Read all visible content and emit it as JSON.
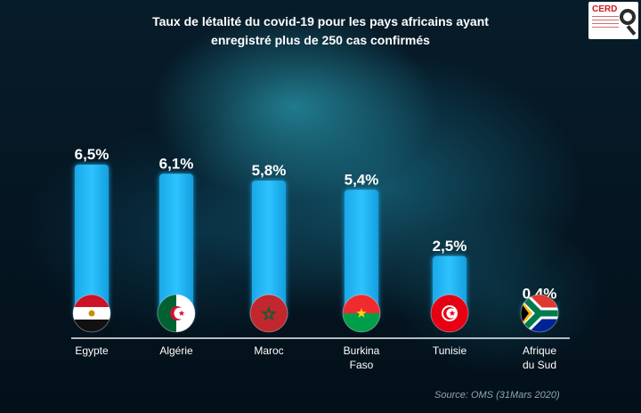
{
  "title_line1": "Taux de létalité du covid-19 pour les pays africains ayant",
  "title_line2": "enregistré plus de 250 cas confirmés",
  "logo_text": "CERD",
  "source": "Source: OMS (31Mars 2020)",
  "colors": {
    "bar": "#19b6f2",
    "bar_glow": "#1fc4ff",
    "background": "#06202e",
    "text": "#ffffff"
  },
  "chart_data": {
    "type": "bar",
    "title": "Taux de létalité du covid-19 pour les pays africains ayant enregistré plus de 250 cas confirmés",
    "xlabel": "",
    "ylabel": "",
    "categories": [
      {
        "label_lines": [
          "Egypte"
        ],
        "flag_icon": "egypt-flag-icon"
      },
      {
        "label_lines": [
          "Algérie"
        ],
        "flag_icon": "algeria-flag-icon"
      },
      {
        "label_lines": [
          "Maroc"
        ],
        "flag_icon": "morocco-flag-icon"
      },
      {
        "label_lines": [
          "Burkina",
          "Faso"
        ],
        "flag_icon": "burkina-faso-flag-icon"
      },
      {
        "label_lines": [
          "Tunisie"
        ],
        "flag_icon": "tunisia-flag-icon"
      },
      {
        "label_lines": [
          "Afrique",
          "du Sud"
        ],
        "flag_icon": "south-africa-flag-icon"
      }
    ],
    "values": [
      6.5,
      6.1,
      5.8,
      5.4,
      2.5,
      0.4
    ],
    "value_labels": [
      "6,5%",
      "6,1%",
      "5,8%",
      "5,4%",
      "2,5%",
      "0,4%"
    ],
    "unit": "%",
    "ylim": [
      0,
      6.5
    ],
    "grid": false,
    "legend": "none"
  }
}
